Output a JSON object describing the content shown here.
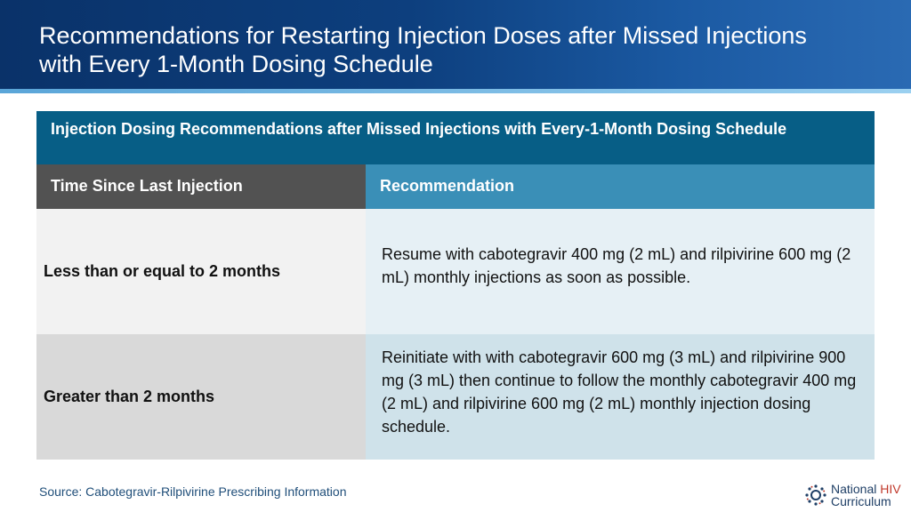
{
  "slide": {
    "title": "Recommendations for Restarting Injection Doses after Missed Injections with Every 1-Month Dosing Schedule"
  },
  "table": {
    "caption": "Injection Dosing Recommendations after Missed Injections with Every-1-Month Dosing Schedule",
    "headers": [
      "Time Since Last Injection",
      "Recommendation"
    ],
    "rows": [
      {
        "time": "Less than or equal to 2 months",
        "recommendation": "Resume with cabotegravir 400 mg (2 mL) and rilpivirine 600 mg (2 mL) monthly injections as soon as possible."
      },
      {
        "time": "Greater than 2 months",
        "recommendation": "Reinitiate with with cabotegravir 600 mg (3 mL) and rilpivirine 900 mg (3 mL) then continue to follow the monthly cabotegravir 400 mg (2 mL) and rilpivirine 600 mg (2 mL) monthly injection dosing schedule."
      }
    ]
  },
  "footer": {
    "source": "Source: Cabotegravir-Rilpivirine Prescribing Information",
    "logo": {
      "icon": "national-hiv-curriculum-logo-icon",
      "line1_a": "National",
      "line1_b": "HIV",
      "line2": "Curriculum"
    }
  }
}
